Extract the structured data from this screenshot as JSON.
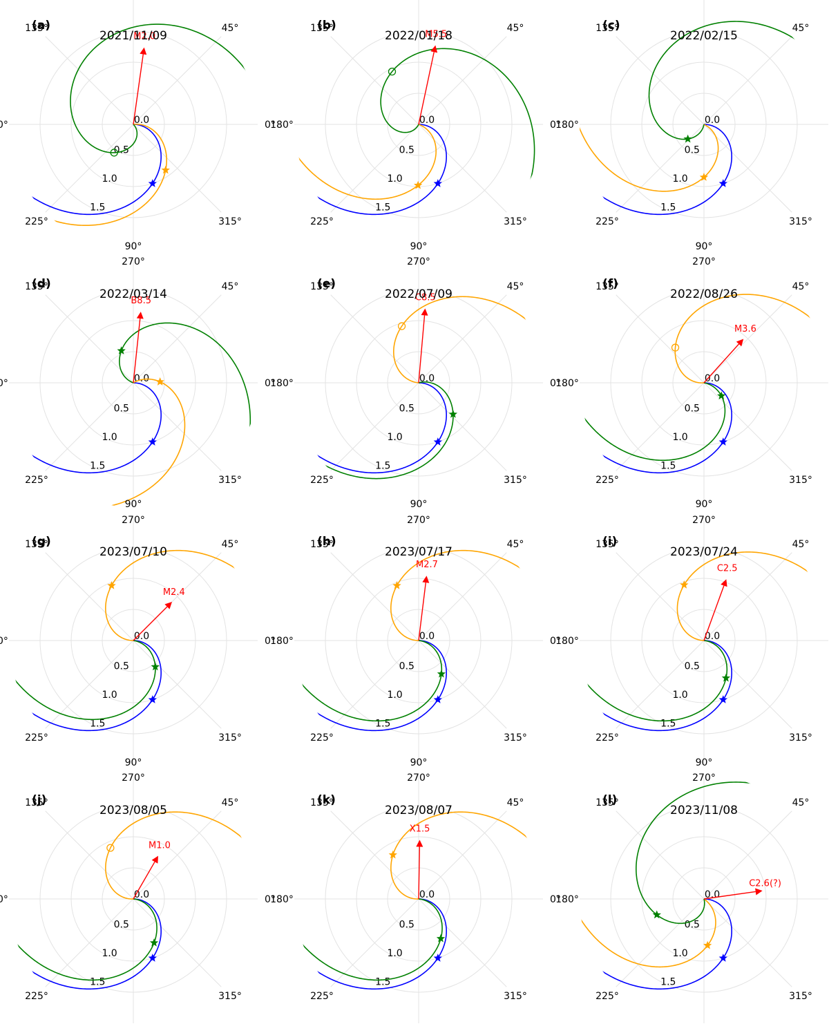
{
  "chart_data": {
    "type": "polar-panels",
    "rmax": 2.0,
    "radial_ticks": [
      "0.0",
      "0.5",
      "1.0",
      "1.5"
    ],
    "angle_ticks": [
      "0°",
      "45°",
      "90°",
      "135°",
      "180°",
      "225°",
      "270°",
      "315°"
    ],
    "colors": {
      "blue": "#0000ff",
      "orange": "#ffa500",
      "green": "#008000",
      "arrow": "#ff0000"
    },
    "panels": [
      {
        "label": "(a)",
        "date": "2021/11/09",
        "flare": {
          "label": "M2.0",
          "angle": 82,
          "r": 1.25
        },
        "spirals": [
          {
            "color": "blue",
            "phi0": 0,
            "k": 0.8,
            "marker": "star",
            "r": 1.0
          },
          {
            "color": "orange",
            "phi0": 6,
            "k": 0.75,
            "marker": "star",
            "r": 0.9
          },
          {
            "color": "green",
            "phi0": -45,
            "k": 1.6,
            "marker": "circle",
            "r": 0.55
          }
        ]
      },
      {
        "label": "(b)",
        "date": "2022/01/18",
        "flare": {
          "label": "M5.5",
          "angle": 78,
          "r": 1.3
        },
        "spirals": [
          {
            "color": "blue",
            "phi0": 0,
            "k": 0.8,
            "marker": "star",
            "r": 1.0
          },
          {
            "color": "orange",
            "phi0": -20,
            "k": 0.8,
            "marker": "star",
            "r": 0.98
          },
          {
            "color": "green",
            "phi0": -115,
            "k": 1.5,
            "marker": "circle",
            "r": 0.95
          }
        ]
      },
      {
        "label": "(c)",
        "date": "2022/02/15",
        "flare": null,
        "spirals": [
          {
            "color": "blue",
            "phi0": 0,
            "k": 0.8,
            "marker": "star",
            "r": 1.0
          },
          {
            "color": "orange",
            "phi0": -25,
            "k": 0.85,
            "marker": "star",
            "r": 0.85
          },
          {
            "color": "green",
            "phi0": -100,
            "k": 1.2,
            "marker": "star",
            "r": 0.35
          }
        ]
      },
      {
        "label": "(d)",
        "date": "2022/03/14",
        "flare": {
          "label": "B8.5",
          "angle": 84,
          "r": 1.15
        },
        "spirals": [
          {
            "color": "blue",
            "phi0": 0,
            "k": 0.8,
            "marker": "star",
            "r": 1.0
          },
          {
            "color": "orange",
            "phi0": 30,
            "k": 0.72,
            "marker": "star",
            "r": 0.43
          },
          {
            "color": "green",
            "phi0": 160,
            "k": 1.0,
            "marker": "star",
            "r": 0.55
          }
        ]
      },
      {
        "label": "(e)",
        "date": "2022/07/09",
        "flare": {
          "label": "C8.5",
          "angle": 85,
          "r": 1.2
        },
        "spirals": [
          {
            "color": "blue",
            "phi0": 0,
            "k": 0.8,
            "marker": "star",
            "r": 1.0
          },
          {
            "color": "orange",
            "phi0": 175,
            "k": 0.8,
            "marker": "circle",
            "r": 0.95
          },
          {
            "color": "green",
            "phi0": 15,
            "k": 0.85,
            "marker": "star",
            "r": 0.75
          }
        ]
      },
      {
        "label": "(f)",
        "date": "2022/08/26",
        "flare": {
          "label": "M3.6",
          "angle": 48,
          "r": 0.95
        },
        "spirals": [
          {
            "color": "blue",
            "phi0": 0,
            "k": 0.8,
            "marker": "star",
            "r": 1.0
          },
          {
            "color": "orange",
            "phi0": 185,
            "k": 0.85,
            "marker": "circle",
            "r": 0.73
          },
          {
            "color": "green",
            "phi0": -10,
            "k": 0.85,
            "marker": "star",
            "r": 0.35
          }
        ]
      },
      {
        "label": "(g)",
        "date": "2023/07/10",
        "flare": {
          "label": "M2.4",
          "angle": 45,
          "r": 0.88
        },
        "spirals": [
          {
            "color": "blue",
            "phi0": 0,
            "k": 0.8,
            "marker": "star",
            "r": 1.0
          },
          {
            "color": "orange",
            "phi0": 180,
            "k": 0.8,
            "marker": "star",
            "r": 0.95
          },
          {
            "color": "green",
            "phi0": -8,
            "k": 0.85,
            "marker": "star",
            "r": 0.55
          }
        ]
      },
      {
        "label": "(h)",
        "date": "2023/07/17",
        "flare": {
          "label": "M2.7",
          "angle": 83,
          "r": 1.05
        },
        "spirals": [
          {
            "color": "blue",
            "phi0": 0,
            "k": 0.8,
            "marker": "star",
            "r": 1.0
          },
          {
            "color": "orange",
            "phi0": 180,
            "k": 0.8,
            "marker": "star",
            "r": 0.95
          },
          {
            "color": "green",
            "phi0": -6,
            "k": 0.85,
            "marker": "star",
            "r": 0.65
          }
        ]
      },
      {
        "label": "(i)",
        "date": "2023/07/24",
        "flare": {
          "label": "C2.5",
          "angle": 70,
          "r": 1.05
        },
        "spirals": [
          {
            "color": "blue",
            "phi0": 0,
            "k": 0.8,
            "marker": "star",
            "r": 1.0
          },
          {
            "color": "orange",
            "phi0": 178,
            "k": 0.8,
            "marker": "star",
            "r": 0.95
          },
          {
            "color": "green",
            "phi0": -6,
            "k": 0.85,
            "marker": "star",
            "r": 0.7
          }
        ]
      },
      {
        "label": "(j)",
        "date": "2023/08/05",
        "flare": {
          "label": "M1.0",
          "angle": 60,
          "r": 0.8
        },
        "spirals": [
          {
            "color": "blue",
            "phi0": 0,
            "k": 0.8,
            "marker": "star",
            "r": 1.0
          },
          {
            "color": "orange",
            "phi0": 183,
            "k": 0.85,
            "marker": "circle",
            "r": 0.9
          },
          {
            "color": "green",
            "phi0": -5,
            "k": 0.85,
            "marker": "star",
            "r": 0.78
          }
        ]
      },
      {
        "label": "(k)",
        "date": "2023/08/07",
        "flare": {
          "label": "X1.5",
          "angle": 89,
          "r": 0.95
        },
        "spirals": [
          {
            "color": "blue",
            "phi0": 0,
            "k": 0.8,
            "marker": "star",
            "r": 1.0
          },
          {
            "color": "orange",
            "phi0": 183,
            "k": 0.85,
            "marker": "star",
            "r": 0.82
          },
          {
            "color": "green",
            "phi0": -5,
            "k": 0.85,
            "marker": "star",
            "r": 0.73
          }
        ]
      },
      {
        "label": "(l)",
        "date": "2023/11/08",
        "flare": {
          "label": "C2.6(?)",
          "angle": 8,
          "r": 0.95
        },
        "spirals": [
          {
            "color": "blue",
            "phi0": 0,
            "k": 0.8,
            "marker": "star",
            "r": 1.0
          },
          {
            "color": "orange",
            "phi0": -35,
            "k": 0.75,
            "marker": "star",
            "r": 0.75
          },
          {
            "color": "green",
            "phi0": -75,
            "k": 1.2,
            "marker": "star",
            "r": 0.8
          }
        ]
      }
    ]
  }
}
